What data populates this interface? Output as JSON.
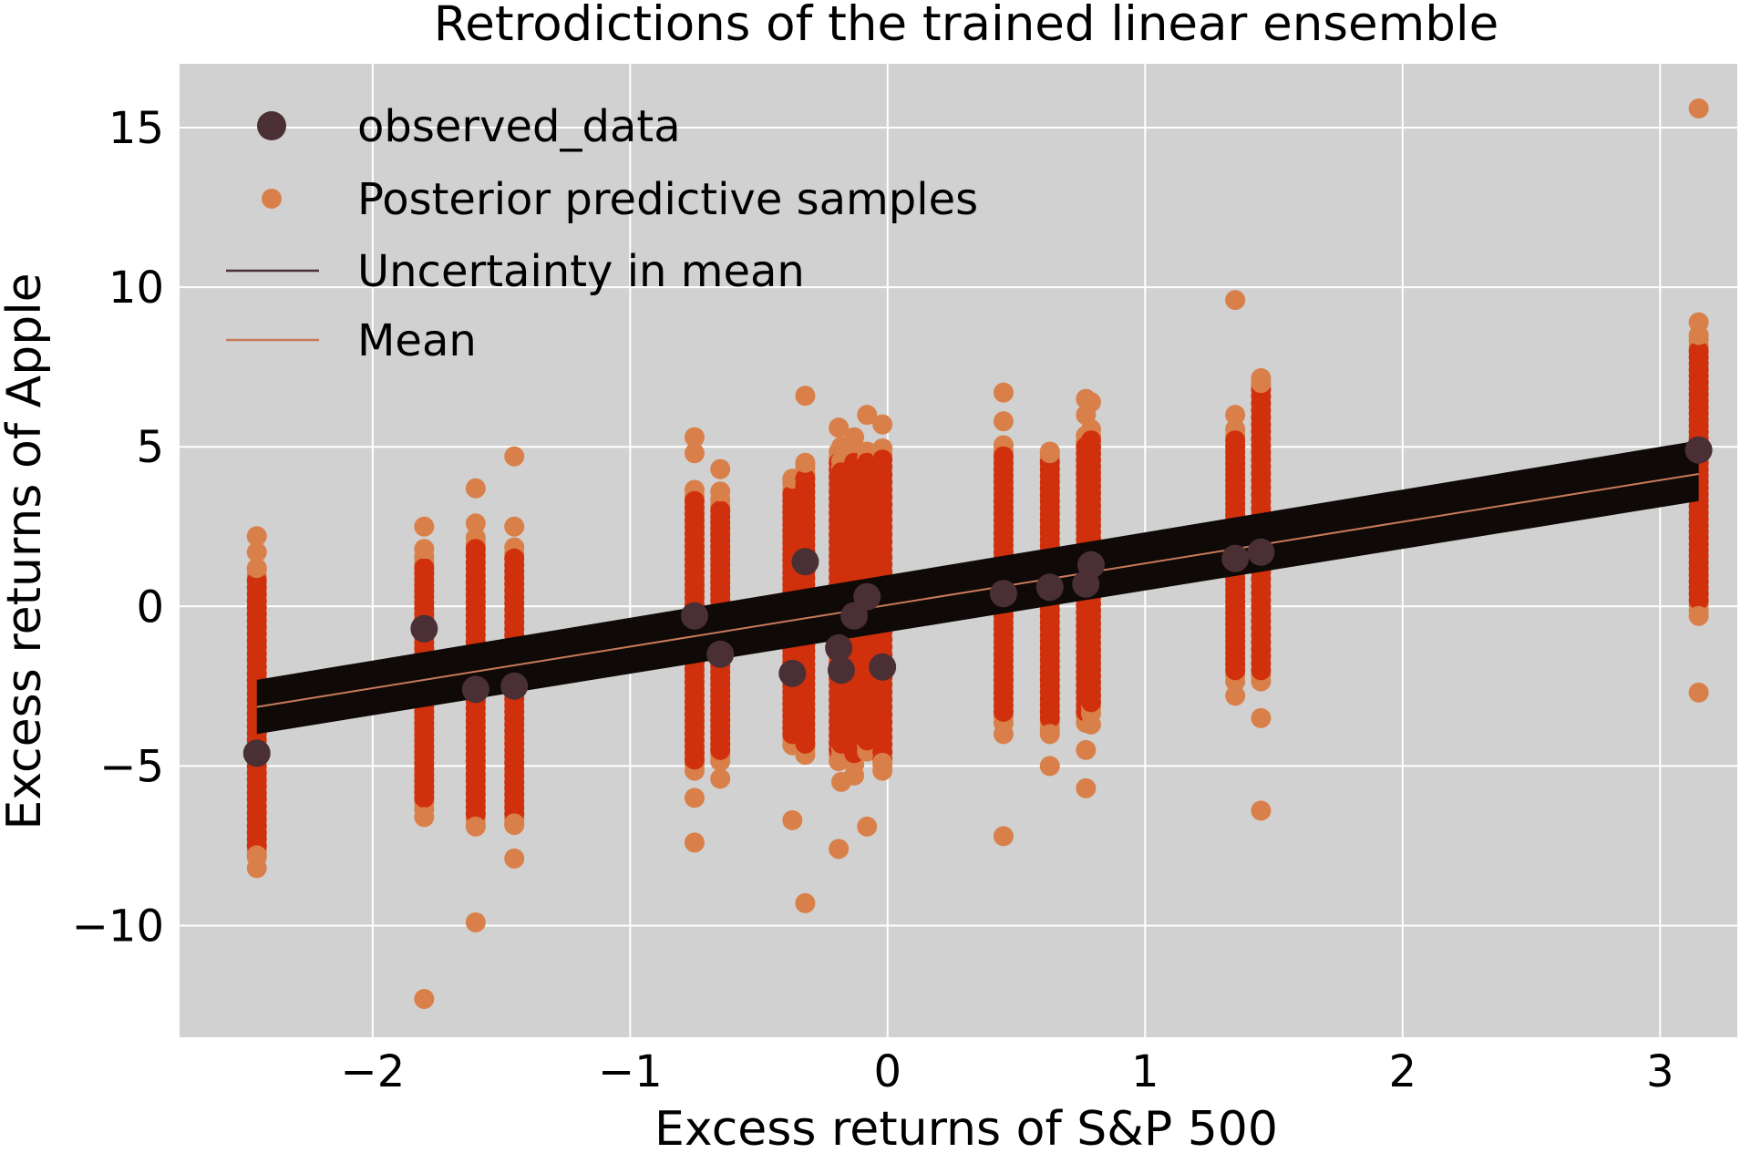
{
  "chart_data": {
    "type": "scatter",
    "title": "Retrodictions of the trained linear ensemble",
    "xlabel": "Excess returns of S&P 500",
    "ylabel": "Excess returns of Apple",
    "xlim": [
      -2.75,
      3.3
    ],
    "ylim": [
      -13.5,
      17
    ],
    "x_ticks": [
      -2,
      -1,
      0,
      1,
      2,
      3
    ],
    "x_tick_labels": [
      "−2",
      "−1",
      "0",
      "1",
      "2",
      "3"
    ],
    "y_ticks": [
      -10,
      -5,
      0,
      5,
      10,
      15
    ],
    "y_tick_labels": [
      "−10",
      "−5",
      "0",
      "5",
      "10",
      "15"
    ],
    "grid": true,
    "legend_placement": "top-left",
    "colors": {
      "background": "#d1d1d1",
      "grid": "#ffffff",
      "observed": "#4a3034",
      "samples_core": "#d0300c",
      "samples_outer": "#d9804a",
      "uncertainty": "#0f0a08",
      "mean": "#c97a5a"
    },
    "legend": [
      {
        "label": "observed_data",
        "marker": "big-dot",
        "color": "#4a3034"
      },
      {
        "label": "Posterior predictive samples",
        "marker": "small-dot",
        "color": "#d9804a"
      },
      {
        "label": "Uncertainty in mean",
        "marker": "line",
        "color": "#4a3034"
      },
      {
        "label": "Mean",
        "marker": "line",
        "color": "#c97a5a"
      }
    ],
    "series": [
      {
        "name": "observed_data",
        "kind": "scatter",
        "points": [
          [
            -2.45,
            -4.6
          ],
          [
            -1.8,
            -0.7
          ],
          [
            -1.6,
            -2.6
          ],
          [
            -1.45,
            -2.5
          ],
          [
            -0.75,
            -0.3
          ],
          [
            -0.65,
            -1.5
          ],
          [
            -0.37,
            -2.1
          ],
          [
            -0.32,
            1.4
          ],
          [
            -0.19,
            -1.3
          ],
          [
            -0.18,
            -2.0
          ],
          [
            -0.13,
            -0.3
          ],
          [
            -0.08,
            0.3
          ],
          [
            -0.02,
            -1.9
          ],
          [
            0.45,
            0.4
          ],
          [
            0.63,
            0.6
          ],
          [
            0.77,
            0.7
          ],
          [
            0.79,
            1.3
          ],
          [
            1.35,
            1.5
          ],
          [
            1.45,
            1.7
          ],
          [
            3.15,
            4.9
          ]
        ]
      },
      {
        "name": "Posterior predictive samples",
        "kind": "vertical_spread",
        "columns": [
          {
            "x": -2.45,
            "core": [
              -7.5,
              0.8
            ],
            "outliers": [
              2.2,
              1.7,
              1.2,
              -7.8,
              -8.2
            ]
          },
          {
            "x": -1.8,
            "core": [
              -6.0,
              1.2
            ],
            "outliers": [
              2.5,
              1.8,
              -6.6,
              -12.3
            ]
          },
          {
            "x": -1.6,
            "core": [
              -6.5,
              1.8
            ],
            "outliers": [
              3.7,
              2.6,
              -6.9,
              -9.9
            ]
          },
          {
            "x": -1.45,
            "core": [
              -6.5,
              1.5
            ],
            "outliers": [
              4.7,
              2.5,
              -6.8,
              -7.9
            ]
          },
          {
            "x": -0.75,
            "core": [
              -4.8,
              3.3
            ],
            "outliers": [
              5.3,
              4.8,
              -6.0,
              -7.4
            ]
          },
          {
            "x": -0.65,
            "core": [
              -4.5,
              3.0
            ],
            "outliers": [
              4.3,
              3.6,
              -5.4
            ]
          },
          {
            "x": -0.37,
            "core": [
              -4.0,
              3.5
            ],
            "outliers": [
              4.0,
              -6.7
            ]
          },
          {
            "x": -0.32,
            "core": [
              -4.3,
              4.0
            ],
            "outliers": [
              6.6,
              4.5,
              -9.3
            ]
          },
          {
            "x": -0.19,
            "core": [
              -4.5,
              4.5
            ],
            "outliers": [
              5.6,
              -7.6
            ]
          },
          {
            "x": -0.18,
            "core": [
              -4.3,
              4.2
            ],
            "outliers": [
              5.0,
              -5.5
            ]
          },
          {
            "x": -0.13,
            "core": [
              -4.6,
              4.5
            ],
            "outliers": [
              5.3,
              -5.3
            ]
          },
          {
            "x": -0.08,
            "core": [
              -4.2,
              4.5
            ],
            "outliers": [
              6.0,
              -6.9
            ]
          },
          {
            "x": -0.02,
            "core": [
              -4.8,
              4.6
            ],
            "outliers": [
              5.7,
              -4.9
            ]
          },
          {
            "x": 0.45,
            "core": [
              -3.3,
              4.7
            ],
            "outliers": [
              6.7,
              5.8,
              -4.0,
              -7.2
            ]
          },
          {
            "x": 0.63,
            "core": [
              -3.5,
              4.5
            ],
            "outliers": [
              4.8,
              -4.0,
              -5.0
            ]
          },
          {
            "x": 0.77,
            "core": [
              -3.3,
              5.0
            ],
            "outliers": [
              6.5,
              6.0,
              -4.5,
              -5.7
            ]
          },
          {
            "x": 0.79,
            "core": [
              -3.0,
              5.2
            ],
            "outliers": [
              6.4,
              -3.7
            ]
          },
          {
            "x": 1.35,
            "core": [
              -2.0,
              5.2
            ],
            "outliers": [
              6.0,
              9.6,
              -2.8
            ]
          },
          {
            "x": 1.45,
            "core": [
              -2.0,
              6.8
            ],
            "outliers": [
              7.0,
              -3.5,
              -6.4
            ]
          },
          {
            "x": 3.15,
            "core": [
              0.2,
              8.0
            ],
            "outliers": [
              15.6,
              8.9,
              8.5,
              -0.3,
              -2.7
            ]
          }
        ]
      },
      {
        "name": "Uncertainty in mean",
        "kind": "band",
        "x": [
          -2.45,
          3.15
        ],
        "lower": [
          -4.0,
          3.3
        ],
        "upper": [
          -2.3,
          5.2
        ]
      },
      {
        "name": "Mean",
        "kind": "line",
        "x": [
          -2.45,
          3.15
        ],
        "y": [
          -3.15,
          4.15
        ]
      }
    ]
  }
}
